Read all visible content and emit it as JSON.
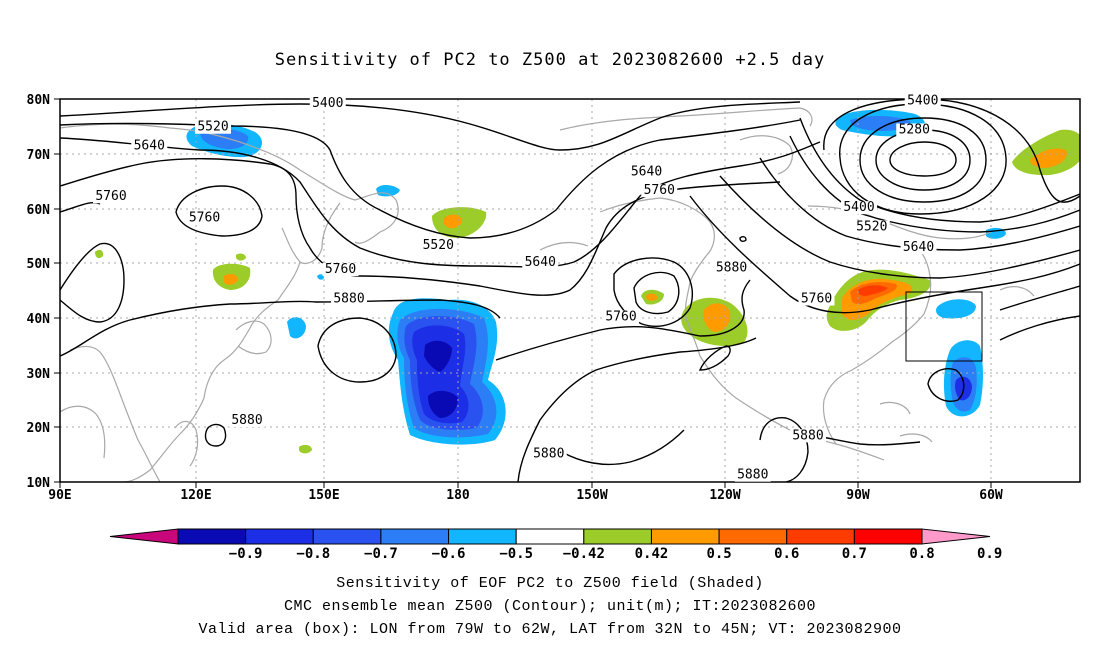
{
  "title": "Sensitivity of PC2 to Z500 at 2023082600 +2.5 day",
  "captions": [
    "Sensitivity of EOF PC2 to Z500 field (Shaded)",
    "CMC ensemble mean Z500 (Contour); unit(m); IT:2023082600",
    "Valid area (box): LON from 79W to 62W, LAT from 32N to 45N; VT: 2023082900"
  ],
  "lat_ticks": [
    "80N",
    "70N",
    "60N",
    "50N",
    "40N",
    "30N",
    "20N",
    "10N"
  ],
  "lon_ticks": [
    "90E",
    "120E",
    "150E",
    "180",
    "150W",
    "120W",
    "90W",
    "60W"
  ],
  "colorbar": {
    "labels": [
      "-0.9",
      "-0.8",
      "-0.7",
      "-0.6",
      "-0.5",
      "-0.42",
      "0.42",
      "0.5",
      "0.6",
      "0.7",
      "0.8",
      "0.9"
    ],
    "colors": [
      "#c8087a",
      "#0a0ab4",
      "#1c2ee6",
      "#2a52f0",
      "#2c7ef6",
      "#11b6ff",
      "#ffffff",
      "#9ccc2a",
      "#ff9a00",
      "#ff6a00",
      "#ff3c00",
      "#ff0000",
      "#ff9acb"
    ]
  },
  "contour_labels": [
    {
      "text": "5400",
      "lon": 153,
      "lat": 78.5
    },
    {
      "text": "5520",
      "lon": 126,
      "lat": 74.2
    },
    {
      "text": "5640",
      "lon": 111,
      "lat": 70.8
    },
    {
      "text": "5760",
      "lon": 102,
      "lat": 61.5
    },
    {
      "text": "5760",
      "lon": 124,
      "lat": 57.6
    },
    {
      "text": "5520",
      "lon": 179,
      "lat": 52.6
    },
    {
      "text": "5640",
      "lon": 203,
      "lat": 49.5
    },
    {
      "text": "5760",
      "lon": 156,
      "lat": 48.2
    },
    {
      "text": "5880",
      "lon": 158,
      "lat": 42.8
    },
    {
      "text": "5880",
      "lon": 134,
      "lat": 20.6
    },
    {
      "text": "5880",
      "lon": 205,
      "lat": 14.5
    },
    {
      "text": "5760",
      "lon": 222,
      "lat": 39.5
    },
    {
      "text": "5640",
      "lon": 228,
      "lat": 66.0
    },
    {
      "text": "5760",
      "lon": 231,
      "lat": 62.6
    },
    {
      "text": "5880",
      "lon": 248,
      "lat": 48.5
    },
    {
      "text": "5400",
      "lon": 278,
      "lat": 59.5
    },
    {
      "text": "5520",
      "lon": 281,
      "lat": 56.0
    },
    {
      "text": "5640",
      "lon": 292,
      "lat": 52.2
    },
    {
      "text": "5280",
      "lon": 291,
      "lat": 73.7
    },
    {
      "text": "5400",
      "lon": 293,
      "lat": 79.0
    },
    {
      "text": "5760",
      "lon": 268,
      "lat": 42.8
    },
    {
      "text": "5880",
      "lon": 266,
      "lat": 17.8
    },
    {
      "text": "5880",
      "lon": 253,
      "lat": 10.6
    }
  ]
}
